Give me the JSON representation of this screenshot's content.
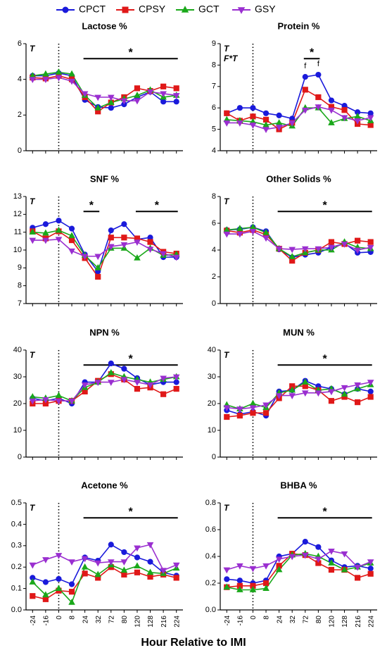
{
  "legend": [
    {
      "name": "CPCT",
      "color": "#1a1adb",
      "marker": "circle"
    },
    {
      "name": "CPSY",
      "color": "#e01818",
      "marker": "square"
    },
    {
      "name": "GCT",
      "color": "#1aa81a",
      "marker": "triangle-up"
    },
    {
      "name": "GSY",
      "color": "#9a2fd0",
      "marker": "triangle-down"
    }
  ],
  "categories": [
    "-24",
    "-16",
    "0",
    "8",
    "24",
    "32",
    "72",
    "80",
    "120",
    "128",
    "216",
    "224"
  ],
  "reference_line": "0",
  "x_label": "Hour Relative to IMI",
  "chart_data": [
    {
      "type": "line",
      "title": "Lactose %",
      "ylim": [
        0,
        6
      ],
      "yticks": [
        0,
        2,
        4,
        6
      ],
      "effects": [
        "T"
      ],
      "sig": [
        {
          "label": "*",
          "from": "24",
          "to": "224"
        }
      ],
      "series": [
        {
          "values": [
            4.2,
            4.2,
            4.35,
            4.2,
            2.85,
            2.45,
            2.4,
            2.6,
            3.0,
            3.3,
            2.75,
            2.75
          ]
        },
        {
          "values": [
            4.1,
            4.05,
            4.2,
            4.0,
            3.0,
            2.2,
            2.7,
            3.0,
            3.5,
            3.35,
            3.6,
            3.5
          ]
        },
        {
          "values": [
            4.2,
            4.3,
            4.4,
            4.3,
            3.1,
            2.4,
            2.7,
            2.9,
            3.1,
            3.4,
            3.0,
            3.1
          ]
        },
        {
          "values": [
            4.0,
            4.0,
            4.1,
            3.9,
            3.2,
            3.0,
            3.0,
            2.8,
            2.8,
            3.3,
            3.2,
            3.1
          ]
        }
      ]
    },
    {
      "type": "line",
      "title": "Protein %",
      "ylim": [
        4,
        9
      ],
      "yticks": [
        4,
        5,
        6,
        7,
        8,
        9
      ],
      "effects": [
        "T",
        "F*T"
      ],
      "sig": [
        {
          "label": "*",
          "from": "72",
          "to": "80"
        }
      ],
      "point_labels": [
        {
          "text": "f",
          "category": "72"
        },
        {
          "text": "f",
          "category": "80"
        }
      ],
      "series": [
        {
          "values": [
            5.75,
            6.0,
            6.0,
            5.75,
            5.65,
            5.5,
            7.45,
            7.55,
            6.35,
            6.1,
            5.8,
            5.75
          ]
        },
        {
          "values": [
            5.75,
            5.4,
            5.6,
            5.45,
            5.0,
            5.3,
            6.85,
            6.5,
            6.05,
            5.9,
            5.25,
            5.2
          ]
        },
        {
          "values": [
            5.45,
            5.4,
            5.35,
            5.2,
            5.3,
            5.15,
            6.0,
            6.0,
            5.3,
            5.5,
            5.6,
            5.4
          ]
        },
        {
          "values": [
            5.3,
            5.3,
            5.2,
            5.0,
            5.1,
            5.3,
            5.9,
            6.05,
            5.9,
            5.55,
            5.4,
            5.55
          ]
        }
      ]
    },
    {
      "type": "line",
      "title": "SNF %",
      "ylim": [
        7,
        13
      ],
      "yticks": [
        7,
        8,
        9,
        10,
        11,
        12,
        13
      ],
      "effects": [
        "T"
      ],
      "sig": [
        {
          "label": "*",
          "from": "24",
          "to": "32"
        },
        {
          "label": "*",
          "from": "120",
          "to": "224"
        }
      ],
      "series": [
        {
          "values": [
            11.25,
            11.45,
            11.65,
            11.2,
            9.75,
            8.8,
            11.1,
            11.45,
            10.6,
            10.7,
            9.6,
            9.6
          ]
        },
        {
          "values": [
            11.05,
            10.65,
            11.05,
            10.55,
            9.55,
            8.5,
            10.7,
            10.7,
            10.65,
            10.45,
            9.9,
            9.8
          ]
        },
        {
          "values": [
            11.0,
            10.95,
            11.1,
            10.8,
            9.7,
            9.0,
            10.1,
            10.1,
            9.55,
            10.1,
            9.7,
            9.75
          ]
        },
        {
          "values": [
            10.55,
            10.55,
            10.6,
            9.95,
            9.65,
            9.65,
            10.2,
            10.3,
            10.45,
            10.05,
            9.8,
            9.6
          ]
        }
      ]
    },
    {
      "type": "line",
      "title": "Other Solids %",
      "ylim": [
        0,
        8
      ],
      "yticks": [
        0,
        2,
        4,
        6,
        8
      ],
      "effects": [
        "T"
      ],
      "sig": [
        {
          "label": "*",
          "from": "24",
          "to": "224"
        }
      ],
      "series": [
        {
          "values": [
            5.5,
            5.55,
            5.7,
            5.4,
            4.05,
            3.45,
            3.65,
            3.8,
            4.2,
            4.5,
            3.8,
            3.85
          ]
        },
        {
          "values": [
            5.45,
            5.3,
            5.5,
            5.15,
            4.1,
            3.2,
            3.8,
            4.0,
            4.6,
            4.45,
            4.7,
            4.6
          ]
        },
        {
          "values": [
            5.5,
            5.6,
            5.7,
            5.3,
            4.1,
            3.5,
            3.8,
            4.0,
            4.0,
            4.6,
            4.2,
            4.1
          ]
        },
        {
          "values": [
            5.2,
            5.2,
            5.4,
            4.9,
            4.1,
            4.05,
            4.1,
            4.1,
            4.2,
            4.45,
            4.0,
            4.2
          ]
        }
      ]
    },
    {
      "type": "line",
      "title": "NPN %",
      "ylim": [
        0,
        40
      ],
      "yticks": [
        0,
        10,
        20,
        30,
        40
      ],
      "effects": [
        "T"
      ],
      "sig": [
        {
          "label": "*",
          "from": "24",
          "to": "224"
        }
      ],
      "series": [
        {
          "values": [
            22,
            21,
            22,
            20,
            28,
            28,
            35,
            33,
            29.5,
            27,
            28,
            28
          ]
        },
        {
          "values": [
            20,
            20,
            21,
            21,
            24.5,
            28.5,
            31,
            29,
            25.5,
            26,
            23.5,
            25.5
          ]
        },
        {
          "values": [
            22.5,
            22,
            23,
            21,
            26,
            28,
            31.5,
            30,
            29,
            28,
            29,
            30
          ]
        },
        {
          "values": [
            21,
            21.5,
            21,
            21,
            27,
            28,
            28,
            29,
            28,
            27,
            29.5,
            30
          ]
        }
      ]
    },
    {
      "type": "line",
      "title": "MUN %",
      "ylim": [
        0,
        40
      ],
      "yticks": [
        0,
        10,
        20,
        30,
        40
      ],
      "effects": [
        "T"
      ],
      "sig": [
        {
          "label": "*",
          "from": "24",
          "to": "224"
        }
      ],
      "series": [
        {
          "values": [
            17.5,
            16,
            17,
            15.5,
            24.5,
            25,
            28.5,
            26.5,
            25.5,
            23.5,
            25.5,
            24.5
          ]
        },
        {
          "values": [
            15,
            15.5,
            16.5,
            16.5,
            22,
            26.5,
            26.5,
            25,
            21,
            22.5,
            20.5,
            22.5
          ]
        },
        {
          "values": [
            19.5,
            18,
            20,
            18.5,
            24,
            25,
            28,
            25,
            25.5,
            23.5,
            25.5,
            27
          ]
        },
        {
          "values": [
            18.5,
            18,
            18.5,
            19.5,
            23,
            23,
            24,
            24,
            24.5,
            26,
            27,
            28
          ]
        }
      ]
    },
    {
      "type": "line",
      "title": "Acetone %",
      "ylim": [
        0,
        0.5
      ],
      "yticks": [
        {
          "value": 0,
          "label": "0.0"
        },
        0.1,
        0.2,
        0.3,
        0.4,
        0.5
      ],
      "effects": [
        "T"
      ],
      "sig": [
        {
          "label": "*",
          "from": "24",
          "to": "224"
        }
      ],
      "series": [
        {
          "values": [
            0.15,
            0.13,
            0.145,
            0.12,
            0.245,
            0.23,
            0.305,
            0.27,
            0.245,
            0.225,
            0.175,
            0.16
          ]
        },
        {
          "values": [
            0.065,
            0.05,
            0.09,
            0.085,
            0.17,
            0.15,
            0.2,
            0.165,
            0.175,
            0.155,
            0.165,
            0.15
          ]
        },
        {
          "values": [
            0.13,
            0.07,
            0.1,
            0.035,
            0.2,
            0.165,
            0.21,
            0.185,
            0.205,
            0.175,
            0.17,
            0.195
          ]
        },
        {
          "values": [
            0.21,
            0.235,
            0.255,
            0.225,
            0.24,
            0.22,
            0.225,
            0.225,
            0.29,
            0.305,
            0.185,
            0.21
          ]
        }
      ]
    },
    {
      "type": "line",
      "title": "BHBA %",
      "ylim": [
        0,
        0.8
      ],
      "yticks": [
        {
          "value": 0,
          "label": "0.0"
        },
        0.2,
        0.4,
        0.6,
        0.8
      ],
      "effects": [
        "T"
      ],
      "sig": [
        {
          "label": "*",
          "from": "24",
          "to": "224"
        }
      ],
      "series": [
        {
          "values": [
            0.23,
            0.22,
            0.2,
            0.22,
            0.4,
            0.42,
            0.51,
            0.47,
            0.37,
            0.32,
            0.33,
            0.31
          ]
        },
        {
          "values": [
            0.17,
            0.18,
            0.18,
            0.2,
            0.33,
            0.42,
            0.41,
            0.35,
            0.3,
            0.3,
            0.24,
            0.27
          ]
        },
        {
          "values": [
            0.17,
            0.15,
            0.15,
            0.16,
            0.3,
            0.41,
            0.42,
            0.4,
            0.35,
            0.3,
            0.32,
            0.35
          ]
        },
        {
          "values": [
            0.3,
            0.33,
            0.31,
            0.33,
            0.38,
            0.4,
            0.41,
            0.38,
            0.44,
            0.42,
            0.32,
            0.36
          ]
        }
      ]
    }
  ]
}
